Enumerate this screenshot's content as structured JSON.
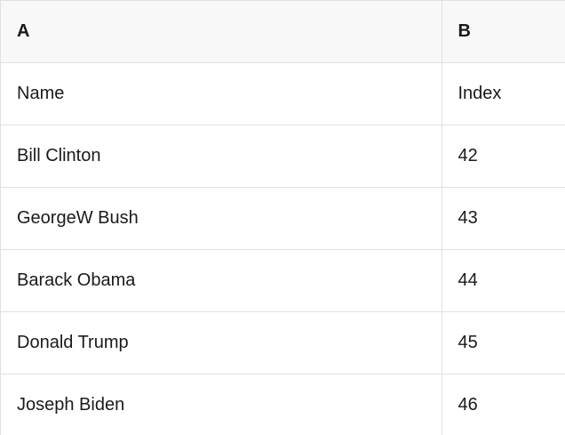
{
  "table": {
    "column_headers": [
      "A",
      "B"
    ],
    "rows": [
      [
        "Name",
        "Index"
      ],
      [
        "Bill Clinton",
        "42"
      ],
      [
        "GeorgeW Bush",
        "43"
      ],
      [
        "Barack Obama",
        "44"
      ],
      [
        "Donald Trump",
        "45"
      ],
      [
        "Joseph Biden",
        "46"
      ]
    ]
  },
  "colors": {
    "header_bg": "#f8f8f8",
    "border": "#e0e0e0",
    "text": "#1a1a1a",
    "background": "#ffffff"
  }
}
